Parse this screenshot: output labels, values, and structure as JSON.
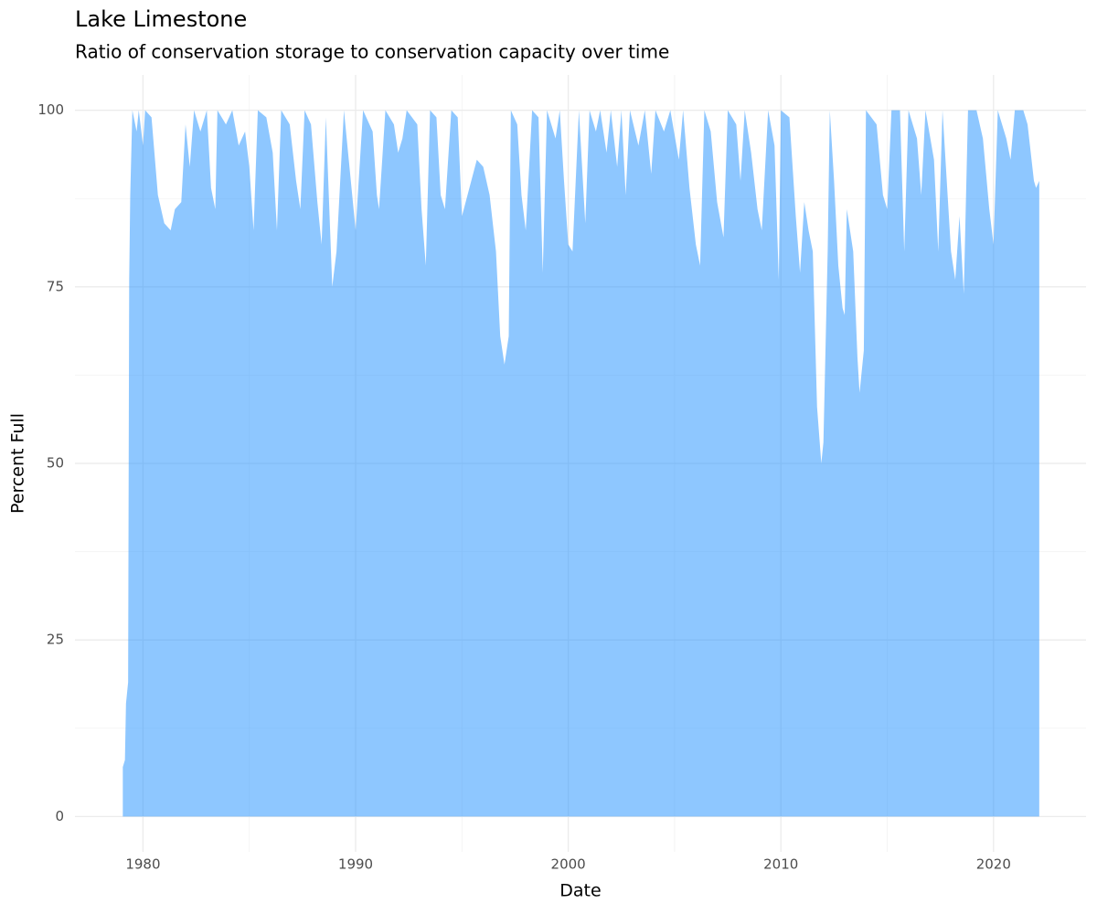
{
  "chart_data": {
    "type": "area",
    "title": "Lake Limestone",
    "subtitle": "Ratio of conservation storage to conservation capacity over time",
    "x_label": "Date",
    "y_label": "Percent Full",
    "color": "#1e90ff",
    "xlim": [
      1976.8,
      2024.35
    ],
    "xticks": [
      1980,
      1990,
      2000,
      2010,
      2020
    ],
    "ylim": [
      -5,
      105
    ],
    "yticks": [
      0,
      25,
      50,
      75,
      100
    ],
    "grid": true,
    "x": [
      1979.05,
      1979.15,
      1979.2,
      1979.3,
      1979.35,
      1979.4,
      1979.5,
      1979.7,
      1979.8,
      1980.0,
      1980.1,
      1980.4,
      1980.7,
      1981.0,
      1981.3,
      1981.5,
      1981.8,
      1982.0,
      1982.2,
      1982.4,
      1982.7,
      1983.0,
      1983.2,
      1983.4,
      1983.5,
      1983.9,
      1984.2,
      1984.5,
      1984.8,
      1985.0,
      1985.2,
      1985.4,
      1985.8,
      1986.1,
      1986.3,
      1986.5,
      1986.9,
      1987.2,
      1987.4,
      1987.6,
      1987.9,
      1988.2,
      1988.4,
      1988.6,
      1988.9,
      1989.1,
      1989.45,
      1990.0,
      1990.35,
      1990.8,
      1991.0,
      1991.1,
      1991.4,
      1991.8,
      1992.0,
      1992.2,
      1992.4,
      1992.9,
      1993.1,
      1993.3,
      1993.5,
      1993.8,
      1994.0,
      1994.2,
      1994.5,
      1994.8,
      1995.0,
      1995.7,
      1996.0,
      1996.3,
      1996.6,
      1996.8,
      1997.0,
      1997.2,
      1997.3,
      1997.6,
      1997.8,
      1998.0,
      1998.3,
      1998.6,
      1998.8,
      1999.0,
      1999.4,
      1999.6,
      1999.8,
      2000.0,
      2000.2,
      2000.5,
      2000.8,
      2001.0,
      2001.3,
      2001.5,
      2001.8,
      2002.0,
      2002.3,
      2002.5,
      2002.7,
      2002.9,
      2003.3,
      2003.6,
      2003.9,
      2004.1,
      2004.5,
      2004.8,
      2005.2,
      2005.4,
      2005.7,
      2006.0,
      2006.2,
      2006.4,
      2006.7,
      2007.0,
      2007.3,
      2007.5,
      2007.9,
      2008.1,
      2008.3,
      2008.6,
      2008.9,
      2009.1,
      2009.4,
      2009.7,
      2009.9,
      2010.0,
      2010.4,
      2010.7,
      2010.9,
      2011.1,
      2011.3,
      2011.5,
      2011.7,
      2011.9,
      2012.0,
      2012.2,
      2012.3,
      2012.5,
      2012.7,
      2012.9,
      2013.0,
      2013.1,
      2013.4,
      2013.6,
      2013.7,
      2013.9,
      2014.0,
      2014.5,
      2014.8,
      2015.0,
      2015.2,
      2015.6,
      2015.8,
      2016.0,
      2016.4,
      2016.6,
      2016.8,
      2017.2,
      2017.4,
      2017.6,
      2018.0,
      2018.2,
      2018.4,
      2018.6,
      2018.8,
      2019.2,
      2019.5,
      2019.8,
      2020.0,
      2020.2,
      2020.6,
      2020.8,
      2021.0,
      2021.4,
      2021.6,
      2021.9,
      2022.0,
      2022.15
    ],
    "values": [
      7,
      8,
      16,
      19,
      76,
      88,
      100,
      97,
      100,
      95,
      100,
      99,
      88,
      84,
      83,
      86,
      87,
      98,
      92,
      100,
      97,
      100,
      89,
      86,
      100,
      98,
      100,
      95,
      97,
      92,
      83,
      100,
      99,
      94,
      83,
      100,
      98,
      90,
      86,
      100,
      98,
      87,
      81,
      99,
      75,
      80,
      100,
      83,
      100,
      97,
      88,
      86,
      100,
      98,
      94,
      96,
      100,
      98,
      86,
      78,
      100,
      99,
      88,
      86,
      100,
      99,
      85,
      93,
      92,
      88,
      80,
      68,
      64,
      68,
      100,
      98,
      88,
      83,
      100,
      99,
      77,
      100,
      96,
      100,
      90,
      81,
      80,
      100,
      84,
      100,
      97,
      100,
      94,
      100,
      92,
      100,
      88,
      100,
      95,
      100,
      91,
      100,
      97,
      100,
      93,
      100,
      89,
      81,
      78,
      100,
      97,
      87,
      82,
      100,
      98,
      90,
      100,
      94,
      86,
      83,
      100,
      95,
      76,
      100,
      99,
      85,
      77,
      87,
      83,
      80,
      58,
      50,
      53,
      80,
      100,
      90,
      78,
      72,
      71,
      86,
      80,
      65,
      60,
      66,
      100,
      98,
      88,
      86,
      100,
      100,
      80,
      100,
      96,
      88,
      100,
      93,
      80,
      100,
      80,
      76,
      85,
      74,
      100,
      100,
      96,
      86,
      81,
      100,
      96,
      93,
      100,
      100,
      98,
      90,
      89,
      90
    ]
  }
}
